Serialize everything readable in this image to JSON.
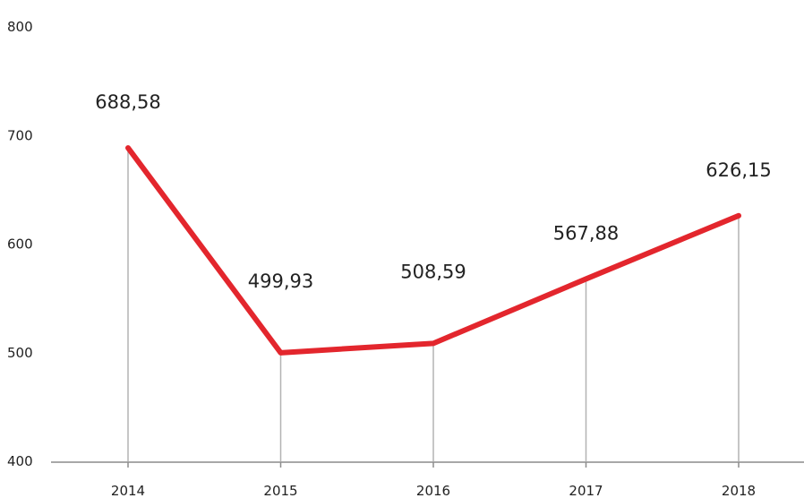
{
  "chart_data": {
    "type": "line",
    "title": "",
    "xlabel": "",
    "ylabel": "",
    "categories": [
      "2014",
      "2015",
      "2016",
      "2017",
      "2018"
    ],
    "series": [
      {
        "values": [
          688.58,
          499.93,
          508.59,
          567.88,
          626.15
        ],
        "labels": [
          "688,58",
          "499,93",
          "508,59",
          "567,88",
          "626,15"
        ],
        "color": "#e3262d"
      }
    ],
    "ylim": [
      400,
      800
    ],
    "yticks": [
      "400",
      "500",
      "600",
      "700",
      "800"
    ],
    "grid": false,
    "drop_lines": true,
    "drop_line_color": "#b3b3b3",
    "axis_color": "#8c8c8c"
  }
}
